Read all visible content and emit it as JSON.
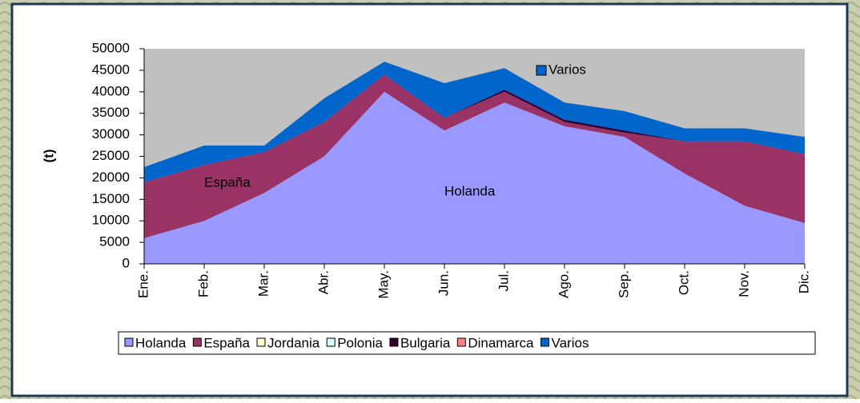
{
  "chart_data": {
    "type": "area",
    "stacked": true,
    "y_label": "(t)",
    "categories": [
      "Ene.",
      "Feb.",
      "Mar.",
      "Abr.",
      "May.",
      "Jun.",
      "Jul.",
      "Ago.",
      "Sep.",
      "Oct.",
      "Nov.",
      "Dic."
    ],
    "series": [
      {
        "name": "Holanda",
        "color": "#9999ff",
        "values": [
          6000,
          10000,
          16500,
          25000,
          40000,
          31000,
          37500,
          32000,
          29500,
          21000,
          13500,
          9500
        ]
      },
      {
        "name": "España",
        "color": "#993366",
        "values": [
          13000,
          13000,
          9500,
          8000,
          4000,
          3000,
          2500,
          1000,
          1000,
          7500,
          15000,
          16000
        ]
      },
      {
        "name": "Jordania",
        "color": "#ffffcc",
        "values": [
          0,
          0,
          0,
          0,
          0,
          0,
          0,
          0,
          0,
          0,
          0,
          0
        ]
      },
      {
        "name": "Polonia",
        "color": "#ccffff",
        "values": [
          0,
          0,
          0,
          0,
          0,
          0,
          0,
          0,
          0,
          0,
          0,
          0
        ]
      },
      {
        "name": "Bulgaria",
        "color": "#330033",
        "values": [
          0,
          0,
          0,
          0,
          0,
          0,
          500,
          500,
          500,
          0,
          0,
          0
        ]
      },
      {
        "name": "Dinamarca",
        "color": "#ff8080",
        "values": [
          0,
          0,
          0,
          0,
          0,
          0,
          0,
          0,
          0,
          0,
          0,
          0
        ]
      },
      {
        "name": "Varios",
        "color": "#0066cc",
        "values": [
          3500,
          4500,
          1500,
          5500,
          3000,
          8000,
          5000,
          4000,
          4500,
          3000,
          3000,
          4000
        ]
      }
    ],
    "annotations": [
      "España",
      "Holanda",
      "Varios"
    ],
    "ylim": [
      0,
      50000
    ],
    "yticks": [
      0,
      5000,
      10000,
      15000,
      20000,
      25000,
      30000,
      35000,
      40000,
      45000,
      50000
    ],
    "plot_background": "#c0c0c0",
    "legend": "bottom"
  }
}
